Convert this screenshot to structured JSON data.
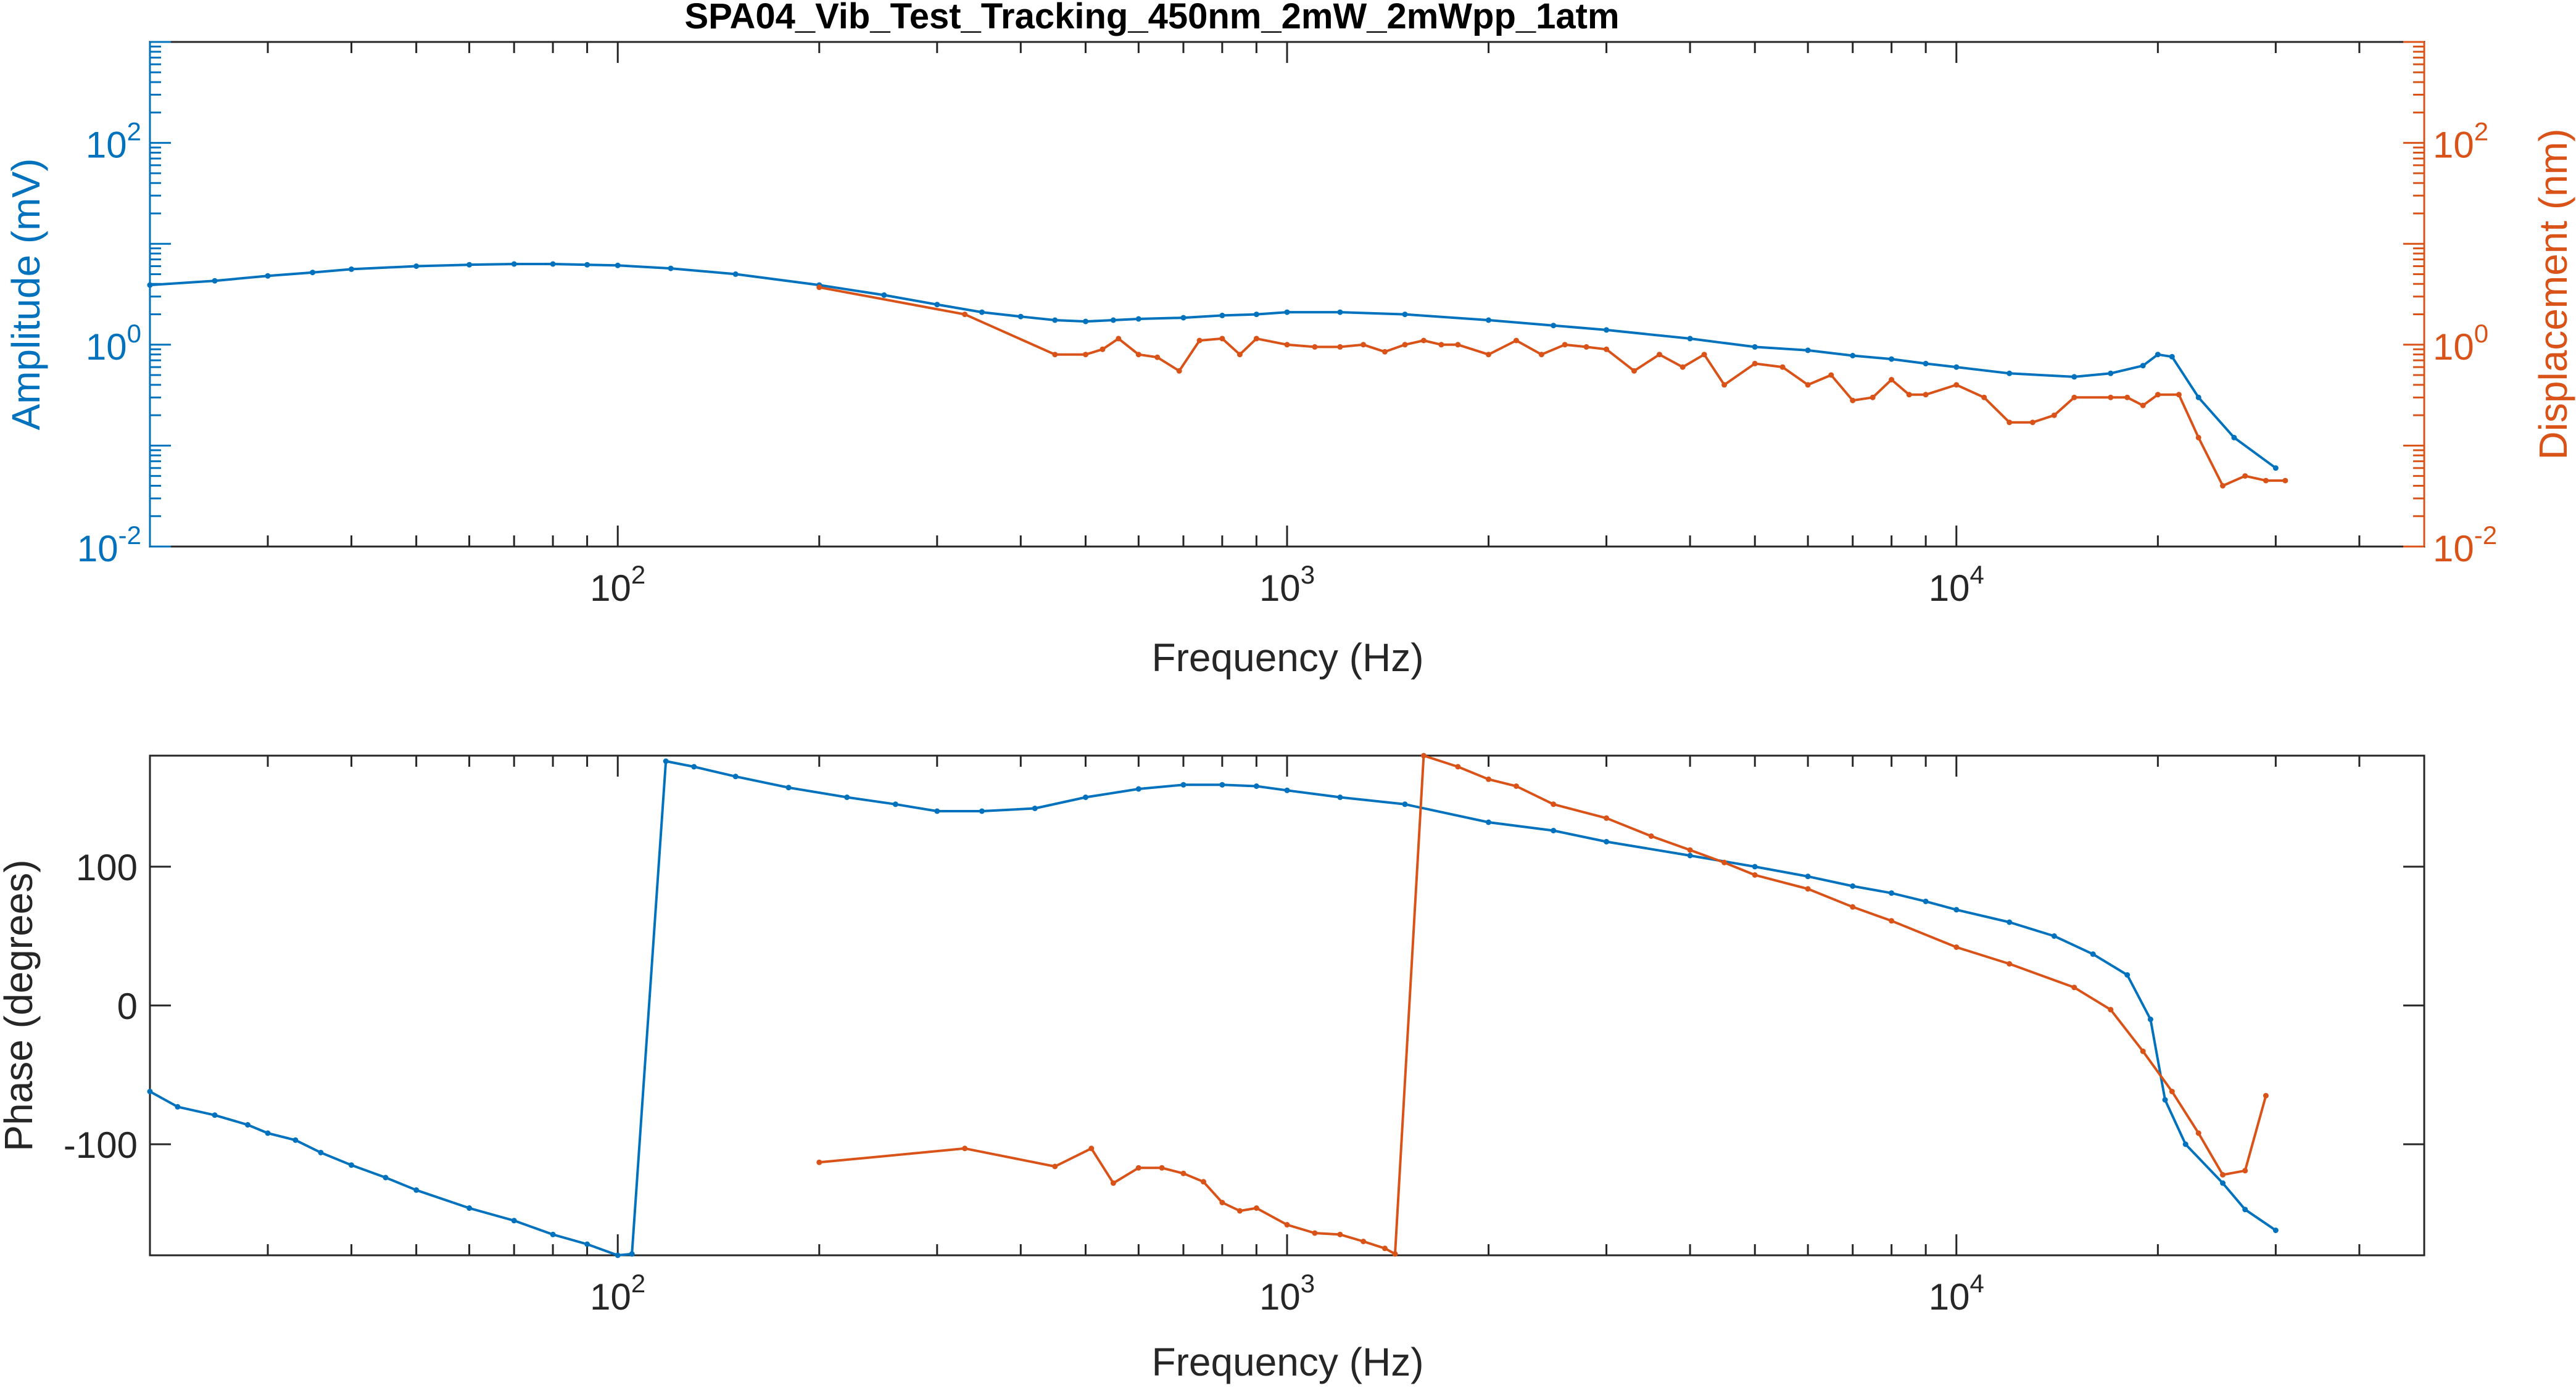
{
  "figure": {
    "title": "SPA04_Vib_Test_Tracking_450nm_2mW_2mWpp_1atm"
  },
  "colors": {
    "blue": "#0072bd",
    "orange": "#d95319",
    "axis": "#262626",
    "grid": "#999999"
  },
  "chart_data": [
    {
      "type": "line",
      "panel": "top",
      "xscale": "log",
      "yscale": "log",
      "xlabel": "Frequency (Hz)",
      "ylabel": "Amplitude (mV)",
      "y2label": "Displacement (nm)",
      "xlim": [
        20,
        50000
      ],
      "ylim": [
        0.01,
        1000
      ],
      "y2lim": [
        0.01,
        1000
      ],
      "xticks": [
        {
          "value": 100,
          "base": "10",
          "exp": "2"
        },
        {
          "value": 1000,
          "base": "10",
          "exp": "3"
        },
        {
          "value": 10000,
          "base": "10",
          "exp": "4"
        }
      ],
      "yticks": [
        {
          "value": 0.01,
          "base": "10",
          "exp": "-2"
        },
        {
          "value": 1,
          "base": "10",
          "exp": "0"
        },
        {
          "value": 100,
          "base": "10",
          "exp": "2"
        }
      ],
      "y2ticks": [
        {
          "value": 0.01,
          "base": "10",
          "exp": "-2"
        },
        {
          "value": 1,
          "base": "10",
          "exp": "0"
        },
        {
          "value": 100,
          "base": "10",
          "exp": "2"
        }
      ],
      "grid": false,
      "series": [
        {
          "axis": "left",
          "color": "#0072bd",
          "markers": true,
          "x": [
            20,
            25,
            30,
            35,
            40,
            50,
            60,
            70,
            80,
            90,
            100,
            120,
            150,
            200,
            250,
            300,
            350,
            400,
            450,
            500,
            550,
            600,
            700,
            800,
            900,
            1000,
            1200,
            1500,
            2000,
            2500,
            3000,
            4000,
            5000,
            6000,
            7000,
            8000,
            9000,
            10000,
            12000,
            15000,
            17000,
            19000,
            20000,
            21000,
            23000,
            26000,
            30000
          ],
          "y": [
            3.9,
            4.3,
            4.8,
            5.2,
            5.6,
            6.0,
            6.2,
            6.3,
            6.3,
            6.2,
            6.1,
            5.7,
            5.0,
            3.9,
            3.1,
            2.5,
            2.1,
            1.9,
            1.75,
            1.7,
            1.75,
            1.8,
            1.85,
            1.95,
            2.0,
            2.1,
            2.1,
            2.0,
            1.75,
            1.55,
            1.4,
            1.15,
            0.95,
            0.88,
            0.78,
            0.72,
            0.65,
            0.6,
            0.52,
            0.48,
            0.52,
            0.62,
            0.8,
            0.76,
            0.3,
            0.12,
            0.06
          ]
        },
        {
          "axis": "right",
          "color": "#d95319",
          "markers": true,
          "x": [
            200,
            330,
            450,
            500,
            530,
            560,
            600,
            640,
            690,
            740,
            800,
            850,
            900,
            1000,
            1100,
            1200,
            1300,
            1400,
            1500,
            1600,
            1700,
            1800,
            2000,
            2200,
            2400,
            2600,
            2800,
            3000,
            3300,
            3600,
            3900,
            4200,
            4500,
            5000,
            5500,
            6000,
            6500,
            7000,
            7500,
            8000,
            8500,
            9000,
            10000,
            11000,
            12000,
            13000,
            14000,
            15000,
            17000,
            18000,
            19000,
            20000,
            21500,
            23000,
            25000,
            27000,
            29000,
            31000
          ],
          "y": [
            3.7,
            2.0,
            0.8,
            0.8,
            0.9,
            1.15,
            0.8,
            0.75,
            0.55,
            1.1,
            1.15,
            0.8,
            1.15,
            1.0,
            0.95,
            0.95,
            1.0,
            0.85,
            1.0,
            1.1,
            1.0,
            1.0,
            0.8,
            1.1,
            0.8,
            1.0,
            0.95,
            0.9,
            0.55,
            0.8,
            0.6,
            0.8,
            0.4,
            0.65,
            0.6,
            0.4,
            0.5,
            0.28,
            0.3,
            0.45,
            0.32,
            0.32,
            0.4,
            0.3,
            0.17,
            0.17,
            0.2,
            0.3,
            0.3,
            0.3,
            0.25,
            0.32,
            0.32,
            0.12,
            0.04,
            0.05,
            0.045,
            0.045
          ]
        }
      ]
    },
    {
      "type": "line",
      "panel": "bottom",
      "xscale": "log",
      "xlabel": "Frequency (Hz)",
      "ylabel": "Phase (degrees)",
      "xlim": [
        20,
        50000
      ],
      "ylim": [
        -180,
        180
      ],
      "xticks": [
        {
          "value": 100,
          "base": "10",
          "exp": "2"
        },
        {
          "value": 1000,
          "base": "10",
          "exp": "3"
        },
        {
          "value": 10000,
          "base": "10",
          "exp": "4"
        }
      ],
      "yticks": [
        {
          "value": -100,
          "label": "-100"
        },
        {
          "value": 0,
          "label": "0"
        },
        {
          "value": 100,
          "label": "100"
        }
      ],
      "grid": false,
      "series": [
        {
          "color": "#0072bd",
          "markers": true,
          "x": [
            20,
            22,
            25,
            28,
            30,
            33,
            36,
            40,
            45,
            50,
            60,
            70,
            80,
            90,
            100,
            105,
            118,
            130,
            150,
            180,
            220,
            260,
            300,
            350,
            420,
            500,
            600,
            700,
            800,
            900,
            1000,
            1200,
            1500,
            2000,
            2500,
            3000,
            4000,
            5000,
            6000,
            7000,
            8000,
            9000,
            10000,
            12000,
            14000,
            16000,
            18000,
            19500,
            20500,
            22000,
            25000,
            27000,
            30000
          ],
          "y": [
            -62,
            -73,
            -79,
            -86,
            -92,
            -97,
            -106,
            -115,
            -124,
            -133,
            -146,
            -155,
            -165,
            -172,
            -180,
            -179,
            176,
            172,
            165,
            157,
            150,
            145,
            140,
            140,
            142,
            150,
            156,
            159,
            159,
            158,
            155,
            150,
            145,
            132,
            126,
            118,
            108,
            100,
            93,
            86,
            81,
            75,
            69,
            60,
            50,
            37,
            22,
            -10,
            -68,
            -100,
            -128,
            -147,
            -162
          ]
        },
        {
          "color": "#d95319",
          "markers": true,
          "x": [
            200,
            330,
            450,
            510,
            550,
            600,
            650,
            700,
            750,
            800,
            850,
            900,
            1000,
            1100,
            1200,
            1300,
            1400,
            1450,
            1600,
            1800,
            2000,
            2200,
            2500,
            3000,
            3500,
            4000,
            4500,
            5000,
            6000,
            7000,
            8000,
            10000,
            12000,
            15000,
            17000,
            19000,
            21000,
            23000,
            25000,
            27000,
            29000
          ],
          "y": [
            -113,
            -103,
            -116,
            -103,
            -128,
            -117,
            -117,
            -121,
            -127,
            -142,
            -148,
            -146,
            -158,
            -164,
            -165,
            -170,
            -175,
            -179,
            180,
            172,
            163,
            158,
            145,
            135,
            122,
            112,
            103,
            94,
            84,
            71,
            61,
            42,
            30,
            13,
            -3,
            -33,
            -62,
            -92,
            -122,
            -119,
            -65
          ]
        }
      ]
    }
  ]
}
